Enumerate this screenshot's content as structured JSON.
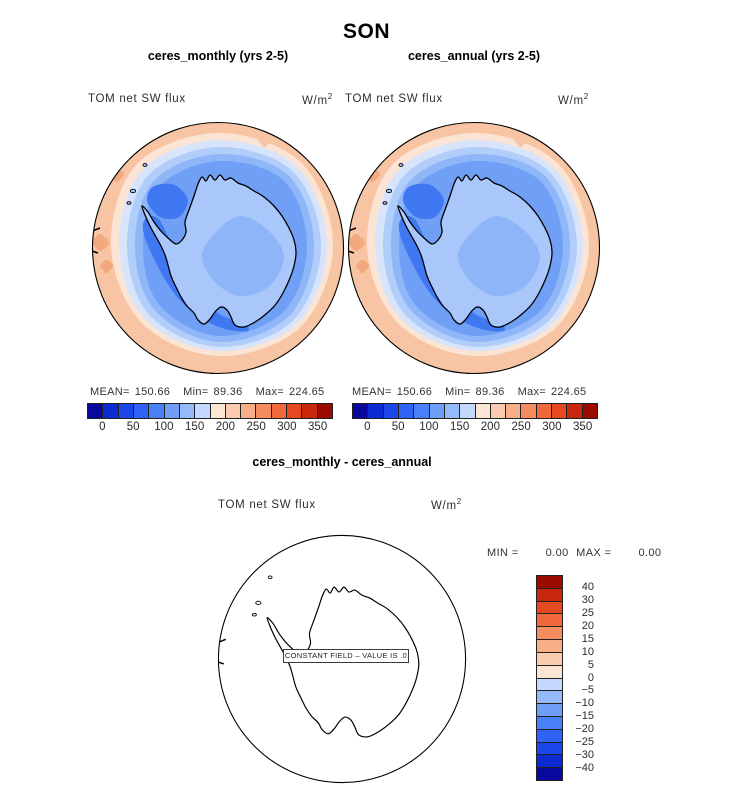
{
  "header": {
    "title": "SON"
  },
  "panels": {
    "monthly": {
      "subtitle": "ceres_monthly (yrs 2-5)",
      "field_label": "TOM net SW flux",
      "units_base": "W/m",
      "units_exp": "2",
      "stats": {
        "mean_label": "MEAN=",
        "mean": "150.66",
        "min_label": "Min=",
        "min": "89.36",
        "max_label": "Max=",
        "max": "224.65"
      }
    },
    "annual": {
      "subtitle": "ceres_annual (yrs 2-5)",
      "field_label": "TOM net SW flux",
      "units_base": "W/m",
      "units_exp": "2",
      "stats": {
        "mean_label": "MEAN=",
        "mean": "150.66",
        "min_label": "Min=",
        "min": "89.36",
        "max_label": "Max=",
        "max": "224.65"
      }
    },
    "diff": {
      "subtitle": "ceres_monthly - ceres_annual",
      "field_label": "TOM net SW flux",
      "units_base": "W/m",
      "units_exp": "2",
      "min_label": "MIN =",
      "min_value": "0.00",
      "max_label": "MAX =",
      "max_value": "0.00",
      "constant_note": "CONSTANT FIELD – VALUE IS .0"
    }
  },
  "flux_colorbar": {
    "ticks": [
      "0",
      "50",
      "100",
      "150",
      "200",
      "250",
      "300",
      "350"
    ],
    "palette": [
      "#08089F",
      "#0D2BD2",
      "#1B47EA",
      "#2F63F5",
      "#4A80F7",
      "#6E9EF8",
      "#95BAFA",
      "#C3D8FC",
      "#FBE5D3",
      "#FACBAE",
      "#F8AF88",
      "#F68D60",
      "#F1693B",
      "#E54920",
      "#C9280E",
      "#9C0B00"
    ]
  },
  "diff_colorbar": {
    "labels": [
      "40",
      "30",
      "25",
      "20",
      "15",
      "10",
      "5",
      "0",
      "−5",
      "−10",
      "−15",
      "−20",
      "−25",
      "−30",
      "−40"
    ]
  },
  "map_colors": {
    "outer_band": "#F7C5A3",
    "outer_band_spot": "#F3A87E",
    "band_cream": "#FBE4D3",
    "band_pale_blue": "#D7E4FB",
    "band_light_blue": "#B1CDFA",
    "band_medium_blue": "#8FB6F8",
    "ocean_main": "#6FA0F6",
    "ocean_deep": "#4078F1",
    "land": "#A9C7FA",
    "land_interior": "#8EB5F8",
    "coastline": "#000000",
    "circle_edge": "#000000"
  },
  "chart_data": [
    {
      "type": "heatmap",
      "panel": "ceres_monthly (yrs 2-5)",
      "season": "SON",
      "variable": "TOM net SW flux",
      "units": "W/m2",
      "projection": "south polar stereographic",
      "region": "Antarctica",
      "stats": {
        "mean": 150.66,
        "min": 89.36,
        "max": 224.65
      },
      "contour_levels": [
        0,
        25,
        50,
        75,
        100,
        125,
        150,
        175,
        200,
        225,
        250,
        275,
        300,
        325,
        350
      ],
      "labeled_ticks": [
        0,
        50,
        100,
        150,
        200,
        250,
        300,
        350
      ],
      "palette_order": "blue_to_red"
    },
    {
      "type": "heatmap",
      "panel": "ceres_annual (yrs 2-5)",
      "season": "SON",
      "variable": "TOM net SW flux",
      "units": "W/m2",
      "projection": "south polar stereographic",
      "region": "Antarctica",
      "stats": {
        "mean": 150.66,
        "min": 89.36,
        "max": 224.65
      },
      "contour_levels": [
        0,
        25,
        50,
        75,
        100,
        125,
        150,
        175,
        200,
        225,
        250,
        275,
        300,
        325,
        350
      ],
      "labeled_ticks": [
        0,
        50,
        100,
        150,
        200,
        250,
        300,
        350
      ],
      "palette_order": "blue_to_red"
    },
    {
      "type": "heatmap",
      "panel": "ceres_monthly - ceres_annual",
      "season": "SON",
      "variable": "TOM net SW flux",
      "units": "W/m2",
      "projection": "south polar stereographic",
      "region": "Antarctica",
      "stats": {
        "min": 0.0,
        "max": 0.0
      },
      "constant_field_value": 0.0,
      "contour_levels": [
        -40,
        -30,
        -25,
        -20,
        -15,
        -10,
        -5,
        0,
        5,
        10,
        15,
        20,
        25,
        30,
        40
      ],
      "note": "CONSTANT FIELD – VALUE IS .0"
    }
  ]
}
